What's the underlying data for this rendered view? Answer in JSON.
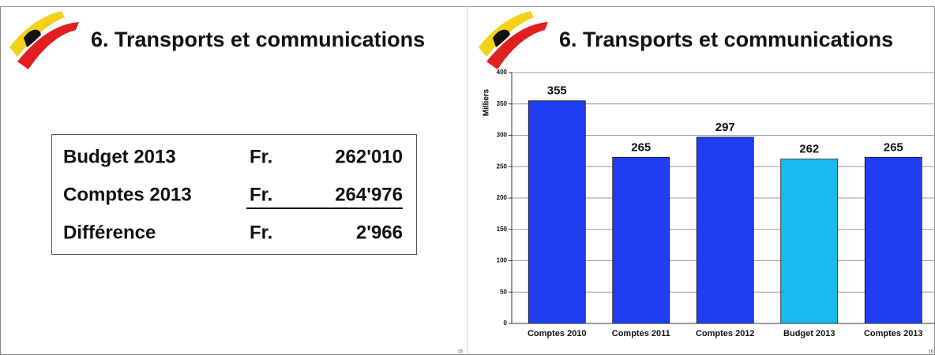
{
  "left_slide": {
    "title": "6. Transports et communications",
    "table": {
      "rows": [
        [
          "Budget 2013",
          "Fr.",
          "262'010"
        ],
        [
          "Comptes 2013",
          "Fr.",
          "264'976"
        ],
        [
          "Différence",
          "Fr.",
          "2'966"
        ]
      ]
    },
    "page_number": "15"
  },
  "right_slide": {
    "title": "6. Transports et communications",
    "page_number": "16"
  },
  "chart_data": {
    "type": "bar",
    "ylabel": "Milliers",
    "categories": [
      "Comptes 2010",
      "Comptes 2011",
      "Comptes 2012",
      "Budget 2013",
      "Comptes 2013"
    ],
    "values": [
      355,
      265,
      297,
      262,
      265
    ],
    "colors": [
      "#1f3ef2",
      "#1f3ef2",
      "#1f3ef2",
      "#1cb8f0",
      "#1f3ef2"
    ],
    "ylim": [
      0,
      400
    ],
    "yticks": [
      0,
      50,
      100,
      150,
      200,
      250,
      300,
      350,
      400
    ],
    "grid": true
  }
}
